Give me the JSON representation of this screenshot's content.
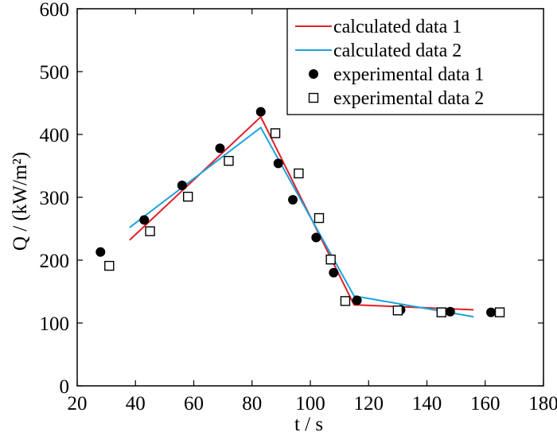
{
  "chart_data": {
    "type": "scatter",
    "xlabel": "t / s",
    "ylabel": "Q / (kW/m²)",
    "xlim": [
      20,
      180
    ],
    "ylim": [
      0,
      600
    ],
    "x_ticks": [
      20,
      40,
      60,
      80,
      100,
      120,
      140,
      160,
      180
    ],
    "y_ticks": [
      0,
      100,
      200,
      300,
      400,
      500,
      600
    ],
    "legend_position": "top-right",
    "series": [
      {
        "name": "calculated data 1",
        "kind": "line",
        "color": "#e0202a",
        "x": [
          38,
          83,
          115,
          156
        ],
        "y": [
          232,
          428,
          129,
          121
        ]
      },
      {
        "name": "calculated data 2",
        "kind": "line",
        "color": "#1aa3dd",
        "x": [
          38,
          83,
          115,
          156
        ],
        "y": [
          252,
          411,
          143,
          110
        ]
      },
      {
        "name": "experimental data 1",
        "kind": "marker",
        "marker": "filled-circle",
        "x": [
          28,
          43,
          56,
          69,
          83,
          89,
          94,
          102,
          108,
          116,
          131,
          148,
          162
        ],
        "y": [
          213,
          264,
          319,
          378,
          436,
          354,
          296,
          236,
          180,
          136,
          121,
          118,
          117
        ]
      },
      {
        "name": "experimental data 2",
        "kind": "marker",
        "marker": "open-square",
        "x": [
          31,
          45,
          58,
          72,
          88,
          96,
          103,
          107,
          112,
          130,
          145,
          165
        ],
        "y": [
          191,
          246,
          301,
          358,
          402,
          338,
          267,
          201,
          135,
          120,
          117,
          117
        ]
      }
    ]
  }
}
